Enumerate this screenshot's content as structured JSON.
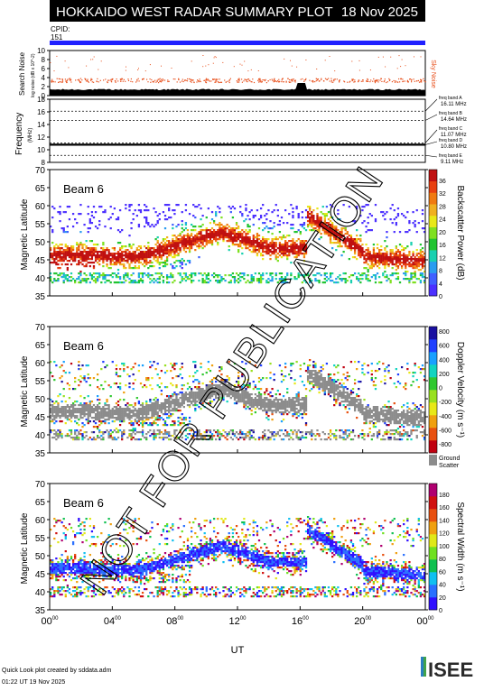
{
  "header": {
    "title": "HOKKAIDO WEST RADAR SUMMARY PLOT",
    "date": "18 Nov 2025"
  },
  "cpid": {
    "label": "CPID:",
    "value": "151"
  },
  "watermark": "NOT FOR PUBLICATION",
  "noise_panel": {
    "ylabel": "Search Noise",
    "ylabel_small": "log noise (dB x 10^-2)",
    "side_label": "Sky Noise",
    "ticks": [
      "0",
      "2",
      "4",
      "6",
      "8",
      "10"
    ]
  },
  "freq_panel": {
    "ylabel": "Frequency",
    "unit": "(MHz)",
    "ticks": [
      "8",
      "10",
      "12",
      "14",
      "16",
      "18"
    ],
    "bands": [
      {
        "name": "freq band A",
        "value": "16.11 MHz"
      },
      {
        "name": "freq band B",
        "value": "14.64 MHz"
      },
      {
        "name": "freq band C",
        "value": "11.07 MHz"
      },
      {
        "name": "freq band D",
        "value": "10.80 MHz"
      },
      {
        "name": "freq band E",
        "value": "9.11 MHz"
      }
    ]
  },
  "panels": [
    {
      "beam": "Beam  6",
      "ylabel": "Magnetic Latitude",
      "cbar_label": "Backscatter Power (dB)",
      "cbar_ticks": [
        "0",
        "4",
        "8",
        "12",
        "16",
        "20",
        "24",
        "28",
        "32",
        "36"
      ],
      "kind": "power"
    },
    {
      "beam": "Beam  6",
      "ylabel": "Magnetic Latitude",
      "cbar_label": "Doppler Velocity (m s⁻¹)",
      "cbar_ticks": [
        "800",
        "600",
        "400",
        "200",
        "0",
        "-200",
        "-400",
        "-600",
        "-800"
      ],
      "kind": "velocity",
      "ground_scatter": "Ground Scatter"
    },
    {
      "beam": "Beam  6",
      "ylabel": "Magnetic Latitude",
      "cbar_label": "Spectral Width (m s⁻¹)",
      "cbar_ticks": [
        "0",
        "20",
        "40",
        "60",
        "80",
        "100",
        "120",
        "140",
        "160",
        "180"
      ],
      "kind": "width"
    }
  ],
  "lat_ticks": [
    "35",
    "40",
    "45",
    "50",
    "55",
    "60",
    "65",
    "70"
  ],
  "time_ticks": [
    "00",
    "04",
    "08",
    "12",
    "16",
    "20",
    "00"
  ],
  "time_sup": "00",
  "xlabel": "UT",
  "footer": {
    "line1": "Quick Look plot created by sddata.adm",
    "line2": "01:22 UT 19 Nov 2025",
    "logo": "ISEE"
  },
  "chart_data": [
    {
      "type": "line",
      "title": "Search Noise",
      "xlabel": "UT",
      "x_range_hours": [
        0,
        24
      ],
      "ylim": [
        0,
        10
      ]
    },
    {
      "type": "line",
      "title": "Frequency",
      "ylabel": "Frequency (MHz)",
      "ylim": [
        8,
        18
      ]
    },
    {
      "type": "heatmap",
      "quantity": "Backscatter Power (dB)",
      "ylabel": "Magnetic Latitude",
      "ylim": [
        35,
        70
      ],
      "x_range_hours": [
        0,
        24
      ],
      "zlim": [
        0,
        36
      ]
    },
    {
      "type": "heatmap",
      "quantity": "Doppler Velocity (m s⁻¹)",
      "ylabel": "Magnetic Latitude",
      "ylim": [
        35,
        70
      ],
      "x_range_hours": [
        0,
        24
      ],
      "zlim": [
        -800,
        800
      ]
    },
    {
      "type": "heatmap",
      "quantity": "Spectral Width (m s⁻¹)",
      "ylabel": "Magnetic Latitude",
      "ylim": [
        35,
        70
      ],
      "x_range_hours": [
        0,
        24
      ],
      "zlim": [
        0,
        180
      ]
    }
  ]
}
